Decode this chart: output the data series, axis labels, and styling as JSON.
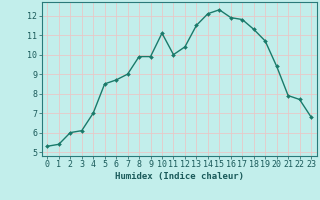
{
  "x": [
    0,
    1,
    2,
    3,
    4,
    5,
    6,
    7,
    8,
    9,
    10,
    11,
    12,
    13,
    14,
    15,
    16,
    17,
    18,
    19,
    20,
    21,
    22,
    23
  ],
  "y": [
    5.3,
    5.4,
    6.0,
    6.1,
    7.0,
    8.5,
    8.7,
    9.0,
    9.9,
    9.9,
    11.1,
    10.0,
    10.4,
    11.5,
    12.1,
    12.3,
    11.9,
    11.8,
    11.3,
    10.7,
    9.4,
    7.9,
    7.7,
    6.8
  ],
  "line_color": "#1a7a6a",
  "marker": "D",
  "marker_size": 2.0,
  "bg_color": "#c2eeeb",
  "grid_color": "#e8c8c8",
  "tick_color": "#1a5a5a",
  "xlabel": "Humidex (Indice chaleur)",
  "ylabel": "",
  "xlim": [
    -0.5,
    23.5
  ],
  "ylim": [
    4.8,
    12.7
  ],
  "yticks": [
    5,
    6,
    7,
    8,
    9,
    10,
    11,
    12
  ],
  "xticks": [
    0,
    1,
    2,
    3,
    4,
    5,
    6,
    7,
    8,
    9,
    10,
    11,
    12,
    13,
    14,
    15,
    16,
    17,
    18,
    19,
    20,
    21,
    22,
    23
  ],
  "xlabel_fontsize": 6.5,
  "tick_fontsize": 6.0,
  "axis_color": "#2a7a7a",
  "line_width": 1.0
}
